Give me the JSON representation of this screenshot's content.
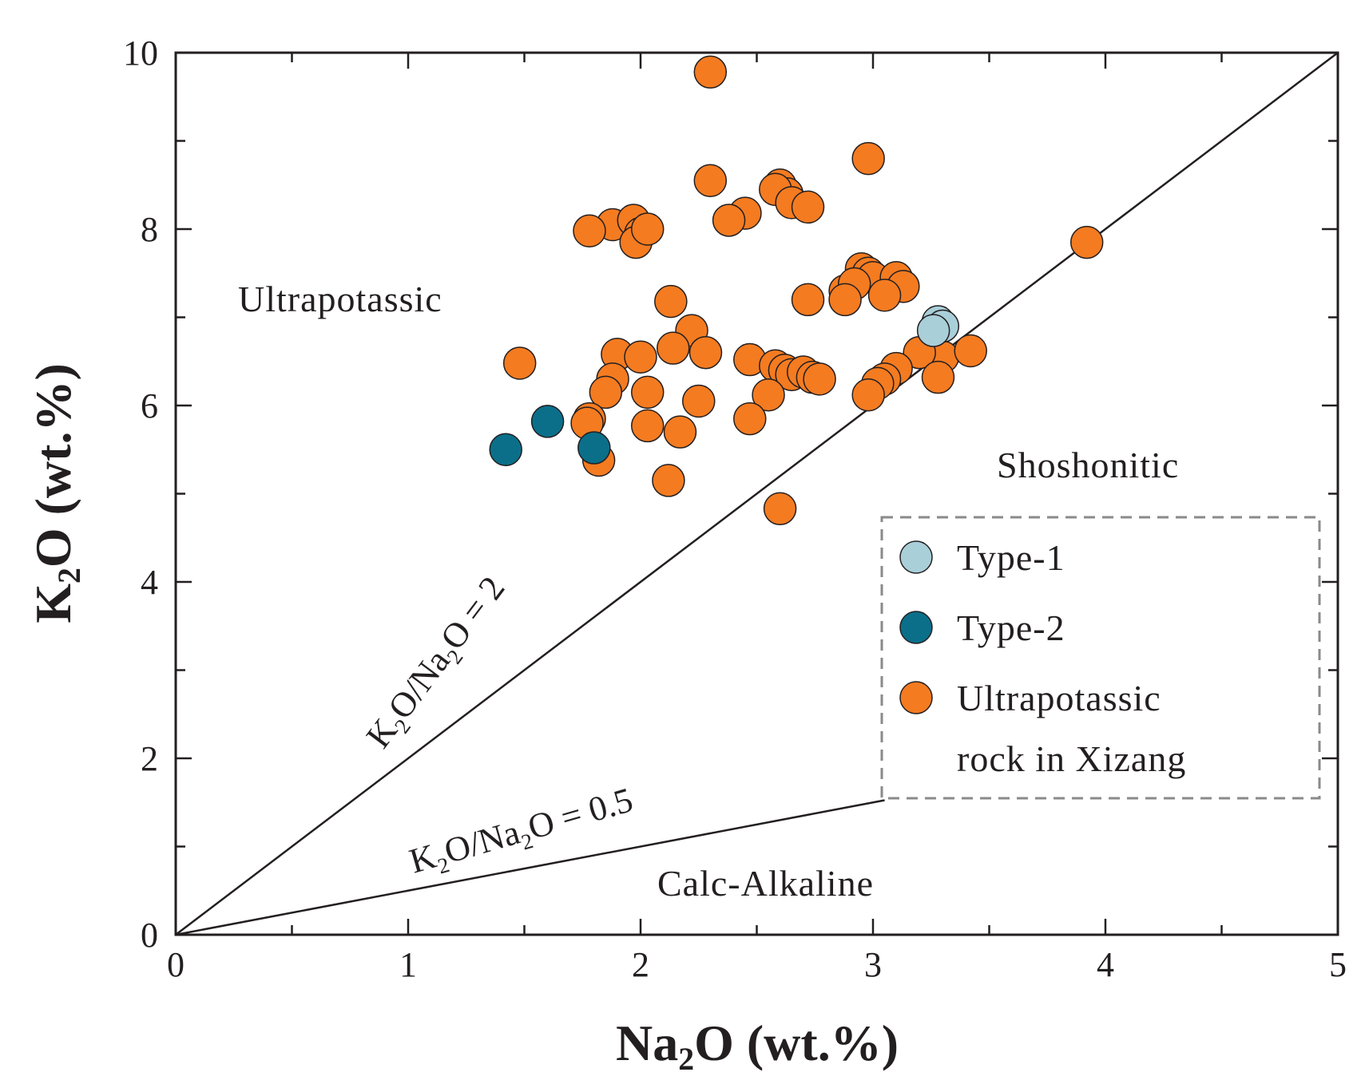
{
  "chart_data": {
    "type": "scatter",
    "title": "",
    "xlabel": "Na2O (wt.%)",
    "ylabel": "K2O (wt.%)",
    "xlim": [
      0,
      5
    ],
    "ylim": [
      0,
      10
    ],
    "x_ticks": [
      "0",
      "1",
      "2",
      "3",
      "4",
      "5"
    ],
    "y_ticks": [
      "0",
      "2",
      "4",
      "6",
      "8",
      "10"
    ],
    "regions": {
      "ultrapotassic": "Ultrapotassic",
      "shoshonitic": "Shoshonitic",
      "calc_alkaline": "Calc-Alkaline"
    },
    "reference_lines": [
      {
        "name": "K2O/Na2O = 2",
        "slope": 2,
        "label": "K2O/Na2O = 2"
      },
      {
        "name": "K2O/Na2O = 0.5",
        "slope": 0.5,
        "label": "K2O/Na2O = 0.5"
      }
    ],
    "series": [
      {
        "name": "Type-1",
        "color": "#a9cfd9",
        "points": [
          [
            3.28,
            6.95
          ],
          [
            3.3,
            6.9
          ],
          [
            3.26,
            6.85
          ]
        ]
      },
      {
        "name": "Type-2",
        "color": "#0b6f8a",
        "points": [
          [
            1.42,
            5.5
          ],
          [
            1.6,
            5.82
          ],
          [
            1.8,
            5.52
          ]
        ]
      },
      {
        "name": "Ultrapotassic rock in Xizang",
        "color": "#f47b20",
        "points": [
          [
            2.3,
            9.78
          ],
          [
            2.98,
            8.8
          ],
          [
            2.3,
            8.55
          ],
          [
            2.6,
            8.5
          ],
          [
            2.63,
            8.4
          ],
          [
            2.58,
            8.45
          ],
          [
            2.65,
            8.3
          ],
          [
            2.72,
            8.25
          ],
          [
            2.45,
            8.18
          ],
          [
            2.38,
            8.1
          ],
          [
            1.88,
            8.05
          ],
          [
            1.97,
            8.1
          ],
          [
            2.0,
            7.95
          ],
          [
            1.98,
            7.85
          ],
          [
            2.03,
            8.0
          ],
          [
            1.78,
            7.98
          ],
          [
            3.92,
            7.85
          ],
          [
            2.95,
            7.55
          ],
          [
            2.98,
            7.5
          ],
          [
            3.0,
            7.45
          ],
          [
            2.88,
            7.3
          ],
          [
            2.92,
            7.38
          ],
          [
            3.1,
            7.45
          ],
          [
            3.13,
            7.35
          ],
          [
            3.05,
            7.25
          ],
          [
            2.88,
            7.2
          ],
          [
            2.72,
            7.2
          ],
          [
            2.13,
            7.18
          ],
          [
            2.22,
            6.85
          ],
          [
            2.14,
            6.65
          ],
          [
            2.28,
            6.6
          ],
          [
            1.48,
            6.48
          ],
          [
            1.9,
            6.58
          ],
          [
            2.0,
            6.55
          ],
          [
            2.47,
            6.52
          ],
          [
            2.58,
            6.45
          ],
          [
            2.62,
            6.4
          ],
          [
            2.65,
            6.35
          ],
          [
            2.7,
            6.38
          ],
          [
            2.74,
            6.32
          ],
          [
            2.77,
            6.3
          ],
          [
            3.25,
            6.62
          ],
          [
            3.3,
            6.55
          ],
          [
            3.42,
            6.62
          ],
          [
            3.2,
            6.6
          ],
          [
            3.1,
            6.42
          ],
          [
            3.05,
            6.3
          ],
          [
            3.02,
            6.25
          ],
          [
            3.28,
            6.32
          ],
          [
            2.98,
            6.12
          ],
          [
            1.88,
            6.3
          ],
          [
            1.85,
            6.15
          ],
          [
            2.03,
            6.15
          ],
          [
            2.25,
            6.05
          ],
          [
            2.55,
            6.12
          ],
          [
            1.78,
            5.85
          ],
          [
            1.77,
            5.8
          ],
          [
            2.03,
            5.77
          ],
          [
            2.17,
            5.7
          ],
          [
            2.47,
            5.85
          ],
          [
            1.82,
            5.38
          ],
          [
            2.12,
            5.15
          ],
          [
            2.6,
            4.83
          ]
        ]
      }
    ],
    "legend": {
      "position": "bottom-right",
      "entries": [
        "Type-1",
        "Type-2",
        "Ultrapotassic rock in Xizang"
      ]
    }
  },
  "legend": {
    "type1": "Type-1",
    "type2": "Type-2",
    "uk_line1": "Ultrapotassic",
    "uk_line2": "rock in Xizang"
  },
  "axes": {
    "x_title_main": "Na",
    "x_title_sub": "2",
    "x_title_rest": "O (wt.%)",
    "y_title_main": "K",
    "y_title_sub": "2",
    "y_title_rest": "O (wt.%)"
  },
  "line_labels": {
    "k": "K",
    "sub": "2",
    "mid": "O/Na",
    "o": "O",
    "eq2": " = 2",
    "eq05": " = 0.5"
  }
}
